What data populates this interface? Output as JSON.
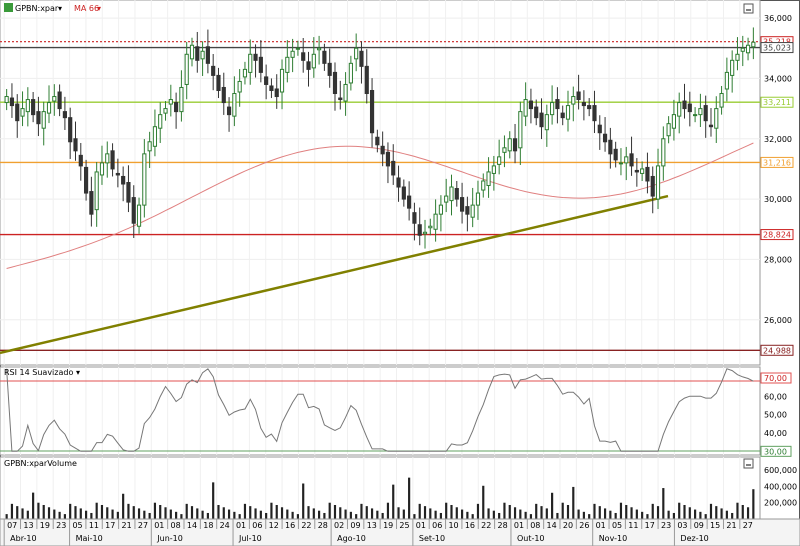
{
  "price_panel": {
    "symbol": "GPBN:xpar",
    "indicator": "MA 66",
    "axis_labels": [
      "36,000",
      "34,000",
      "32,000",
      "30,000",
      "28,000",
      "26,000"
    ],
    "h_levels": [
      {
        "label": "35,218",
        "color": "#cc2222",
        "style": "dotted"
      },
      {
        "label": "35,023",
        "color": "#444444",
        "style": "solid"
      },
      {
        "label": "33,211",
        "color": "#99cc33",
        "style": "solid"
      },
      {
        "label": "31,216",
        "color": "#f0a030",
        "style": "solid"
      },
      {
        "label": "28,824",
        "color": "#cc2222",
        "style": "solid"
      },
      {
        "label": "24,988",
        "color": "#882222",
        "style": "solid"
      }
    ]
  },
  "rsi_panel": {
    "title": "RSI 14 Suavizado",
    "axis_labels": [
      "70,00",
      "60,00",
      "50,00",
      "40,00",
      "30,00"
    ]
  },
  "volume_panel": {
    "title": "GPBN:xparVolume",
    "axis_labels": [
      "600,000",
      "400,000",
      "200,000"
    ]
  },
  "time_axis": {
    "day_labels": [
      "07",
      "13",
      "19",
      "23",
      "05",
      "11",
      "17",
      "21",
      "27",
      "01",
      "08",
      "14",
      "18",
      "24",
      "01",
      "06",
      "12",
      "16",
      "22",
      "28",
      "02",
      "09",
      "13",
      "19",
      "25",
      "01",
      "06",
      "10",
      "16",
      "22",
      "28",
      "01",
      "08",
      "14",
      "20",
      "26",
      "01",
      "05",
      "11",
      "17",
      "23",
      "03",
      "09",
      "15",
      "21",
      "27"
    ],
    "month_labels": [
      "Abr-10",
      "Mai-10",
      "Jun-10",
      "Jul-10",
      "Ago-10",
      "Set-10",
      "Out-10",
      "Nov-10",
      "Dez-10"
    ]
  },
  "colors": {
    "candle_up": "#2e7d32",
    "candle_down": "#333333",
    "ma": "#e08080",
    "trendline": "#808000",
    "rsi_line": "#777777",
    "volume_bar": "#222222"
  },
  "chart_data": {
    "type": "candlestick",
    "symbol": "GPBN:xpar",
    "period": "Apr-2010 to Dec-2010",
    "price_range": [
      24.5,
      36.6
    ],
    "closes": [
      33.4,
      33.1,
      32.6,
      33.0,
      33.3,
      32.8,
      32.5,
      32.9,
      33.2,
      33.4,
      33.0,
      32.7,
      31.9,
      31.6,
      31.1,
      30.2,
      29.5,
      30.9,
      31.2,
      31.5,
      31.0,
      30.8,
      30.5,
      29.9,
      29.2,
      29.8,
      31.5,
      31.9,
      32.4,
      32.8,
      33.0,
      33.3,
      32.9,
      33.7,
      34.8,
      35.1,
      34.6,
      34.9,
      34.5,
      34.1,
      33.6,
      33.2,
      32.8,
      33.5,
      33.9,
      34.3,
      34.8,
      34.6,
      34.2,
      33.8,
      33.6,
      33.4,
      34.3,
      34.7,
      34.9,
      35.0,
      34.6,
      34.3,
      34.8,
      35.0,
      34.5,
      34.1,
      33.5,
      33.3,
      33.8,
      34.5,
      35.0,
      34.4,
      33.5,
      32.2,
      31.8,
      31.5,
      31.1,
      30.8,
      30.4,
      30.0,
      29.7,
      29.2,
      28.8,
      28.9,
      29.1,
      29.5,
      29.8,
      30.1,
      30.4,
      30.0,
      29.6,
      29.5,
      29.8,
      30.2,
      30.6,
      30.9,
      31.1,
      31.4,
      31.7,
      32.0,
      31.6,
      32.9,
      33.3,
      33.0,
      32.7,
      32.4,
      32.8,
      33.2,
      33.0,
      32.7,
      33.1,
      33.4,
      33.3,
      33.1,
      33.0,
      32.6,
      32.2,
      31.9,
      31.5,
      31.3,
      31.2,
      31.4,
      31.1,
      30.9,
      31.0,
      30.6,
      30.1,
      31.1,
      32.0,
      32.5,
      32.8,
      33.2,
      33.0,
      32.9,
      32.8,
      33.0,
      32.6,
      32.4,
      33.0,
      33.5,
      34.2,
      34.6,
      34.8,
      35.0,
      35.1,
      35.2
    ],
    "ma66": {
      "name": "MA 66",
      "start": 27.7,
      "end": 32.8
    },
    "trendline": {
      "from": 24.9,
      "to": 30.1
    },
    "h_levels": [
      35.218,
      35.023,
      33.211,
      31.216,
      28.824,
      24.988
    ],
    "rsi": {
      "name": "RSI 14 Suavizado",
      "range": [
        28,
        76
      ],
      "levels": [
        70,
        30
      ]
    },
    "volume": {
      "name": "GPBN:xparVolume",
      "range": [
        0,
        700000
      ]
    }
  }
}
